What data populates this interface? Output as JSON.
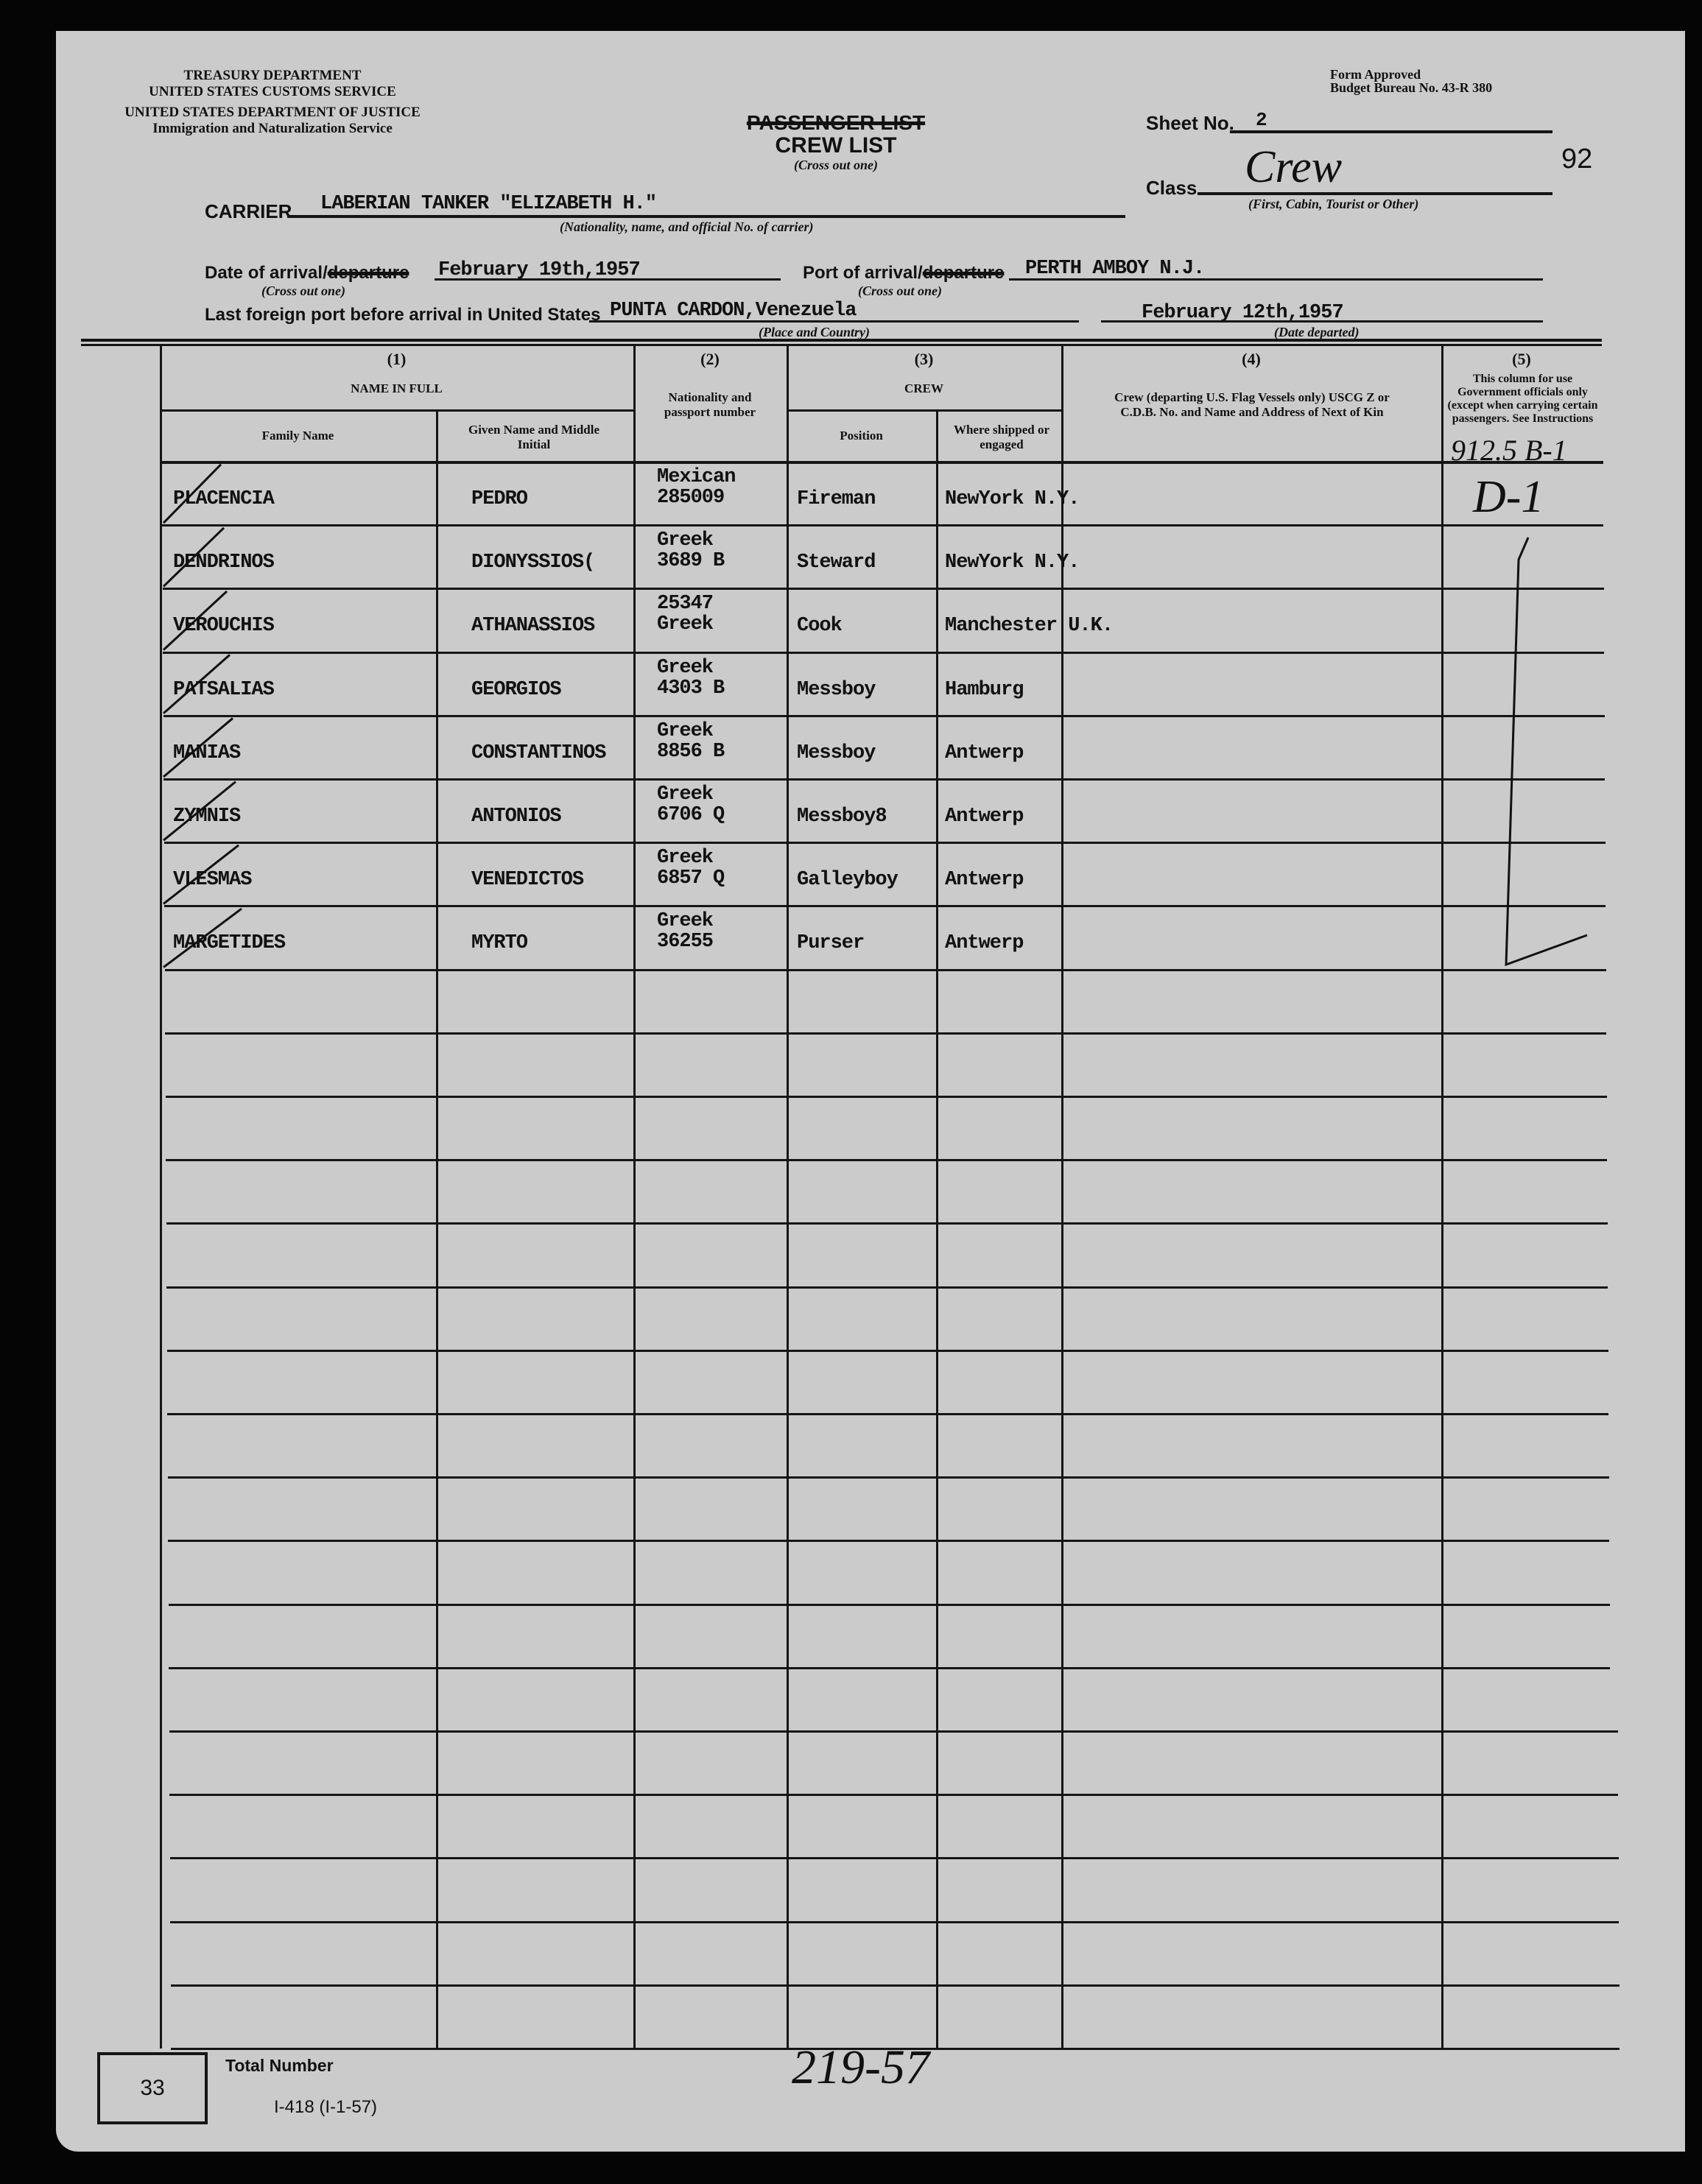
{
  "header": {
    "agency_lines": [
      "TREASURY DEPARTMENT",
      "UNITED STATES CUSTOMS SERVICE",
      "UNITED STATES DEPARTMENT OF JUSTICE",
      "Immigration and Naturalization Service"
    ],
    "form_approved": "Form Approved",
    "budget_bureau": "Budget Bureau No. 43-R 380",
    "title_struck": "PASSENGER LIST",
    "title": "CREW LIST",
    "title_hint": "(Cross out one)",
    "sheet_label": "Sheet No.",
    "sheet_value": "2",
    "class_label": "Class",
    "class_value": "Crew",
    "class_hint": "(First, Cabin, Tourist or Other)",
    "page_number": "92"
  },
  "form": {
    "carrier_label": "CARRIER",
    "carrier_value": "LABERIAN TANKER \"ELIZABETH H.\"",
    "carrier_hint": "(Nationality, name, and official No. of carrier)",
    "date_label": "Date of arrival/",
    "date_struck": "departure",
    "date_value": "February 19th,1957",
    "cross_hint": "(Cross out one)",
    "port_label": "Port of arrival/",
    "port_struck": "departure",
    "port_value": "PERTH AMBOY N.J.",
    "last_port_label": "Last foreign port before arrival in United States",
    "last_port_value": "PUNTA CARDON,Venezuela",
    "last_port_hint": "(Place and Country)",
    "departed_value": "February 12th,1957",
    "departed_hint": "(Date departed)"
  },
  "table": {
    "col1_num": "(1)",
    "col1_title": "NAME IN FULL",
    "family_name": "Family Name",
    "given_name": "Given Name and Middle Initial",
    "col2_num": "(2)",
    "col2_title": "Nationality and passport number",
    "col3_num": "(3)",
    "col3_title": "CREW",
    "position": "Position",
    "where_shipped": "Where shipped or engaged",
    "col4_num": "(4)",
    "col4_title": "Crew (departing U.S. Flag Vessels only) USCG Z or C.D.B. No. and Name and Address of Next of Kin",
    "col5_num": "(5)",
    "col5_title": "This column for use Government officials only (except when carrying certain passengers. See Instructions",
    "col5_annotation": "912.5 B-1",
    "col5_mark": "D-1",
    "total_rows": 25,
    "rows": [
      {
        "family": "PLACENCIA",
        "given": "PEDRO",
        "nat1": "Mexican",
        "nat2": "285009",
        "position": "Fireman",
        "shipped": "NewYork N.Y."
      },
      {
        "family": "DENDRINOS",
        "given": "DIONYSSIOS(",
        "nat1": "Greek",
        "nat2": "3689 B",
        "position": "Steward",
        "shipped": "NewYork N.Y."
      },
      {
        "family": "VEROUCHIS",
        "given": "ATHANASSIOS",
        "nat1": "25347",
        "nat2": "Greek",
        "position": "Cook",
        "shipped": "Manchester U.K."
      },
      {
        "family": "PATSALIAS",
        "given": "GEORGIOS",
        "nat1": "Greek",
        "nat2": "4303 B",
        "position": "Messboy",
        "shipped": "Hamburg"
      },
      {
        "family": "MANIAS",
        "given": "CONSTANTINOS",
        "nat1": "Greek",
        "nat2": "8856 B",
        "position": "Messboy",
        "shipped": "Antwerp"
      },
      {
        "family": "ZYMNIS",
        "given": "ANTONIOS",
        "nat1": "Greek",
        "nat2": "6706 Q",
        "position": "Messboy8",
        "shipped": "Antwerp"
      },
      {
        "family": "VLESMAS",
        "given": "VENEDICTOS",
        "nat1": "Greek",
        "nat2": "6857 Q",
        "position": "Galleyboy",
        "shipped": "Antwerp"
      },
      {
        "family": "MARGETIDES",
        "given": "MYRTO",
        "nat1": "Greek",
        "nat2": "36255",
        "position": "Purser",
        "shipped": "Antwerp"
      }
    ]
  },
  "footer": {
    "total_value": "33",
    "total_label": "Total Number",
    "form_code": "I-418 (I-1-57)",
    "handwritten_number": "219-57"
  },
  "colors": {
    "paper": "#cbcbcb",
    "ink": "#111111",
    "background": "#050505"
  }
}
